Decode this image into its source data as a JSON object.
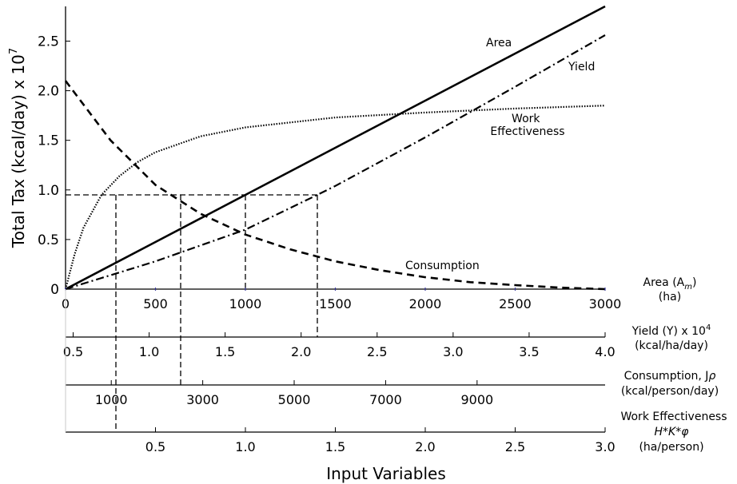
{
  "chart_data": {
    "type": "line",
    "ylabel": "Total Tax (kcal/day) x 10",
    "ylabel_exp": "7",
    "xlabel": "Input Variables",
    "ylim": [
      0,
      2.85
    ],
    "yticks": [
      "0",
      "0.5",
      "1.0",
      "1.5",
      "2.0",
      "2.5"
    ],
    "axes": [
      {
        "label_lines": [
          "Area (A",
          "(ha)"
        ],
        "label_sub": "m",
        "label_tail": ")",
        "min": 0,
        "max": 3000,
        "ticks": [
          "0",
          "500",
          "1000",
          "1500",
          "2000",
          "2500",
          "3000"
        ]
      },
      {
        "label_lines": [
          "Yield (Y) x 10",
          "(kcal/ha/day)"
        ],
        "label_sup": "4",
        "min": 0.45,
        "max": 4.0,
        "ticks": [
          "0.5",
          "1.0",
          "1.5",
          "2.0",
          "2.5",
          "3.0",
          "3.5",
          "4.0"
        ]
      },
      {
        "label_lines": [
          "Consumption, J",
          "(kcal/person/day)"
        ],
        "label_hat": "ρ",
        "min": 0,
        "max": 11800,
        "ticks": [
          "1000",
          "3000",
          "5000",
          "7000",
          "9000"
        ]
      },
      {
        "label_lines": [
          "Work Effectiveness",
          "H*K*",
          "(ha/person)"
        ],
        "label_hat": "φ",
        "min": 0,
        "max": 3.0,
        "ticks": [
          "0.5",
          "1.0",
          "1.5",
          "2.0",
          "2.5",
          "3.0"
        ]
      }
    ],
    "series": [
      {
        "name": "Area",
        "style": "solid",
        "x": [
          0,
          500,
          1000,
          1500,
          2000,
          2500,
          3000
        ],
        "y": [
          0,
          0.475,
          0.95,
          1.425,
          1.9,
          2.375,
          2.85
        ]
      },
      {
        "name": "Yield",
        "style": "dashdot",
        "x": [
          0,
          500,
          1000,
          1400,
          1500,
          2000,
          2500,
          3000
        ],
        "y": [
          0,
          0.28,
          0.6,
          0.95,
          1.04,
          1.53,
          2.04,
          2.56
        ]
      },
      {
        "name": "Consumption",
        "style": "dashed",
        "x": [
          0,
          250,
          500,
          750,
          1000,
          1250,
          1500,
          1750,
          2000,
          2250,
          2500,
          2750,
          3000
        ],
        "y": [
          2.1,
          1.5,
          1.05,
          0.76,
          0.55,
          0.4,
          0.28,
          0.19,
          0.12,
          0.07,
          0.04,
          0.015,
          0.0
        ]
      },
      {
        "name": "Work Effectiveness",
        "style": "dotted",
        "x": [
          0,
          50,
          100,
          200,
          300,
          400,
          500,
          750,
          1000,
          1500,
          2000,
          2500,
          3000
        ],
        "y": [
          0,
          0.35,
          0.62,
          0.95,
          1.14,
          1.28,
          1.38,
          1.54,
          1.63,
          1.73,
          1.78,
          1.82,
          1.85
        ]
      }
    ],
    "reference_level": 0.95,
    "reference_x": [
      280,
      640,
      1000,
      1400
    ]
  }
}
